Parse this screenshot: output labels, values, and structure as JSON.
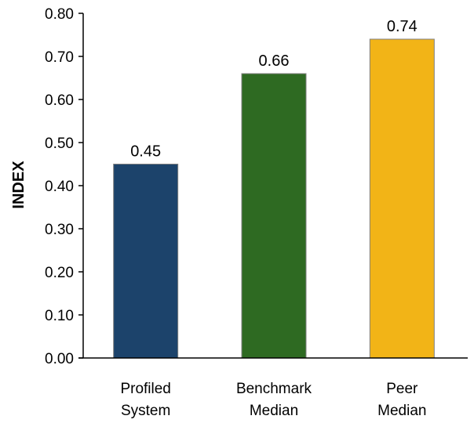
{
  "chart_data": {
    "type": "bar",
    "categories": [
      [
        "Profiled",
        "System"
      ],
      [
        "Benchmark",
        "Median"
      ],
      [
        "Peer",
        "Median"
      ]
    ],
    "values": [
      0.45,
      0.66,
      0.74
    ],
    "data_labels": [
      "0.45",
      "0.66",
      "0.74"
    ],
    "colors": [
      "#1C436B",
      "#2E6A22",
      "#F2B417"
    ],
    "title": "",
    "xlabel": "",
    "ylabel": "INDEX",
    "ylim": [
      0,
      0.8
    ],
    "yticks": [
      0.0,
      0.1,
      0.2,
      0.3,
      0.4,
      0.5,
      0.6,
      0.7,
      0.8
    ],
    "ytick_labels": [
      "0.00",
      "0.10",
      "0.20",
      "0.30",
      "0.40",
      "0.50",
      "0.60",
      "0.70",
      "0.80"
    ],
    "grid": false,
    "legend": "none"
  }
}
